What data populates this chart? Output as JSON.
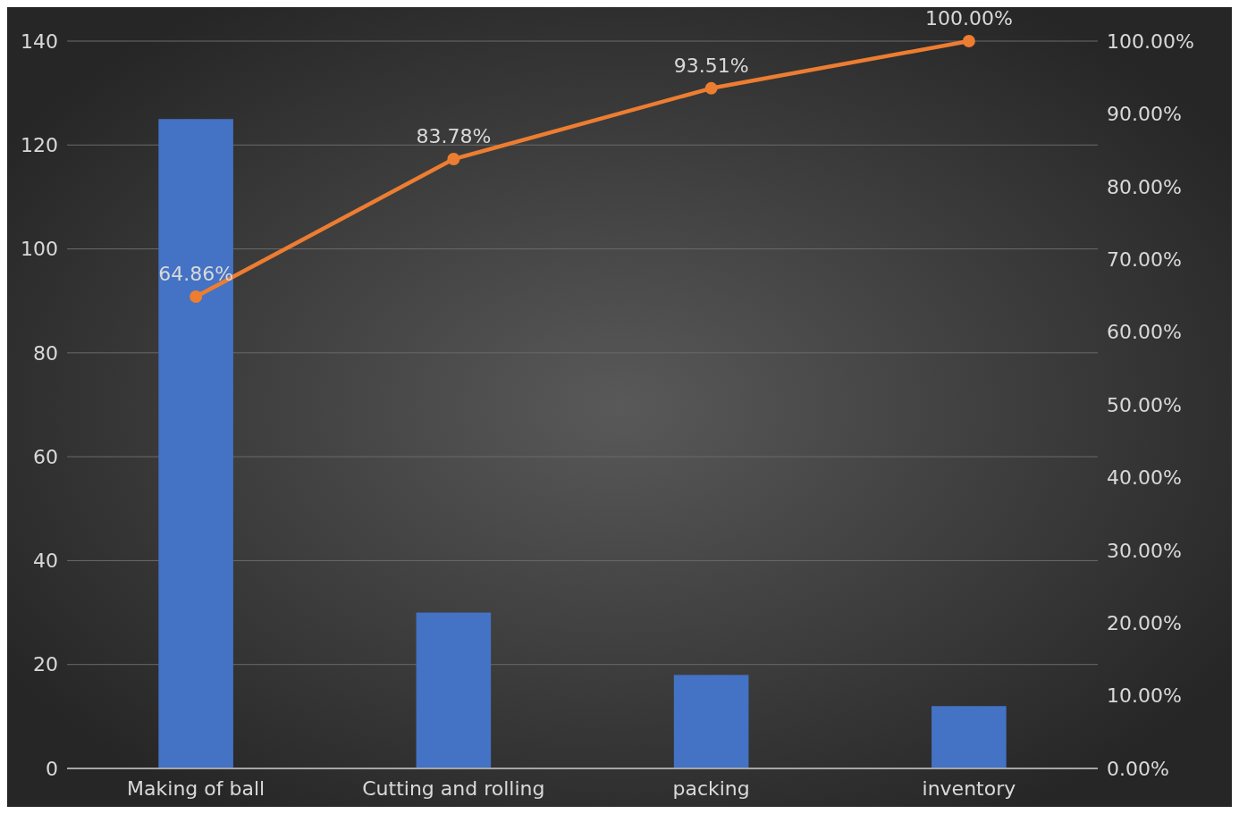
{
  "chart_data": {
    "type": "bar",
    "categories": [
      "Making of ball",
      "Cutting and rolling",
      "packing",
      "inventory"
    ],
    "series": [
      {
        "color": "#4472c4",
        "values": [
          125,
          30,
          18,
          12
        ]
      },
      {
        "type": "line",
        "axis": "y2",
        "color": "#ed7d31",
        "values": [
          64.86,
          83.78,
          93.51,
          100
        ],
        "value_labels": [
          "64.86%",
          "83.78%",
          "93.51%",
          "100.00%"
        ]
      }
    ],
    "ylim": [
      0,
      140
    ],
    "yticks": [
      0,
      20,
      40,
      60,
      80,
      100,
      120,
      140
    ],
    "y2lim": [
      0,
      100
    ],
    "y2ticks": [
      {
        "value": 0,
        "label": "0.00%"
      },
      {
        "value": 10,
        "label": "10.00%"
      },
      {
        "value": 20,
        "label": "20.00%"
      },
      {
        "value": 30,
        "label": "30.00%"
      },
      {
        "value": 40,
        "label": "40.00%"
      },
      {
        "value": 50,
        "label": "50.00%"
      },
      {
        "value": 60,
        "label": "60.00%"
      },
      {
        "value": 70,
        "label": "70.00%"
      },
      {
        "value": 80,
        "label": "80.00%"
      },
      {
        "value": 90,
        "label": "90.00%"
      },
      {
        "value": 100,
        "label": "100.00%"
      }
    ],
    "grid": "y",
    "marker": "circle",
    "line_style": "solid"
  }
}
